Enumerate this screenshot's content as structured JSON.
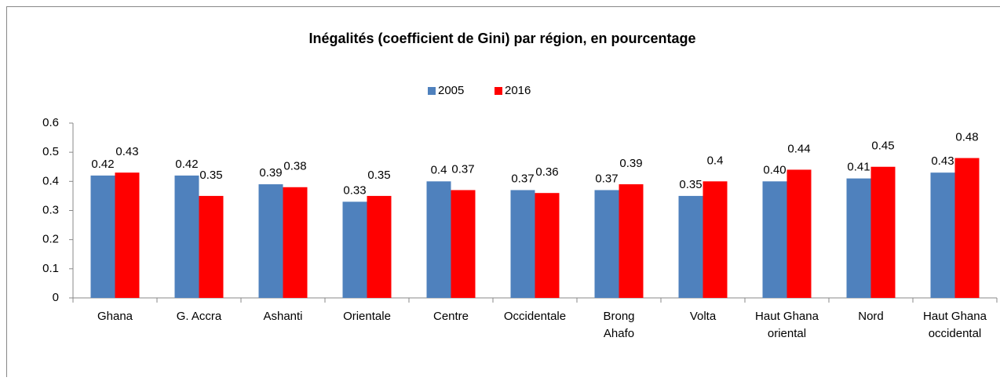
{
  "chart_data": {
    "type": "bar",
    "title": "Inégalités (coefficient de Gini) par région, en pourcentage",
    "categories": [
      "Ghana",
      "G. Accra",
      "Ashanti",
      "Orientale",
      "Centre",
      "Occidentale",
      "Brong\nAhafo",
      "Volta",
      "Haut Ghana\noriental",
      "Nord",
      "Haut Ghana\noccidental"
    ],
    "series": [
      {
        "name": "2005",
        "color": "#4f81bd",
        "values": [
          0.42,
          0.42,
          0.39,
          0.33,
          0.4,
          0.37,
          0.37,
          0.35,
          0.4,
          0.41,
          0.43
        ],
        "value_labels": [
          "0.42",
          "0.42",
          "0.39",
          "0.33",
          "0.4",
          "0.37",
          "0.37",
          "0.35",
          "0.40",
          "0.41",
          "0.43"
        ]
      },
      {
        "name": "2016",
        "color": "#ff0000",
        "values": [
          0.43,
          0.35,
          0.38,
          0.35,
          0.37,
          0.36,
          0.39,
          0.4,
          0.44,
          0.45,
          0.48
        ],
        "value_labels": [
          "0.43",
          "0.35",
          "0.38",
          "0.35",
          "0.37",
          "0.36",
          "0.39",
          "0.4",
          "0.44",
          "0.45",
          "0.48"
        ]
      }
    ],
    "ylim": [
      0,
      0.6
    ],
    "yticks": [
      0,
      0.1,
      0.2,
      0.3,
      0.4,
      0.5,
      0.6
    ],
    "grid": false,
    "legend": "top"
  }
}
